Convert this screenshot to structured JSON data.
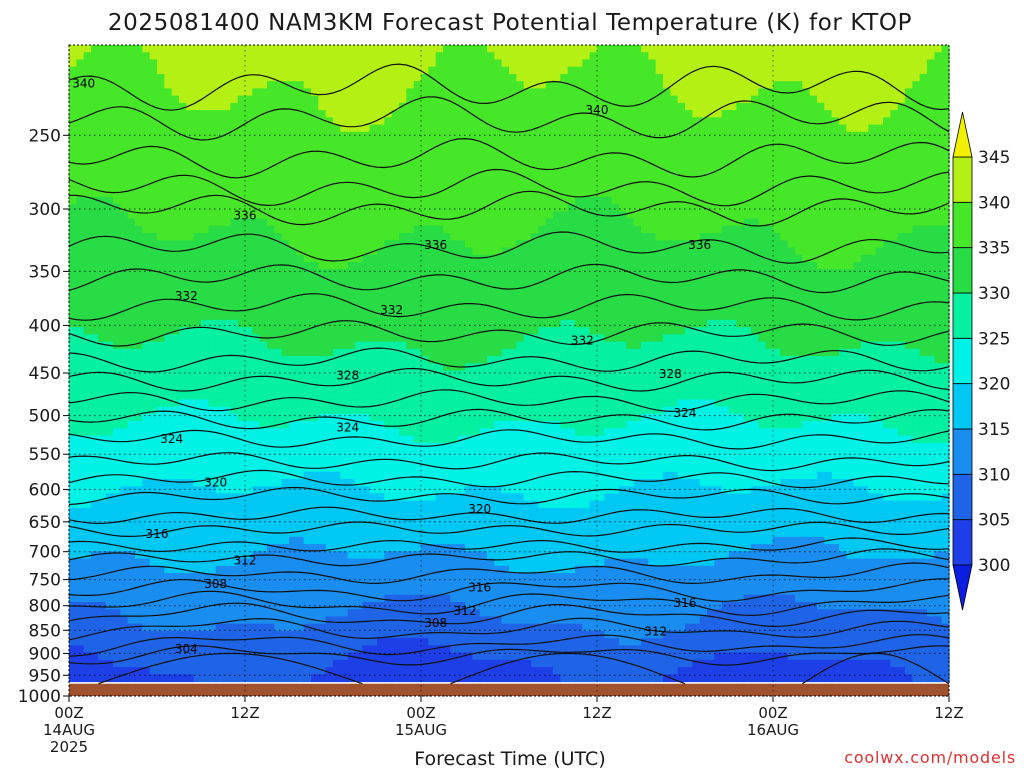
{
  "chart_data": {
    "type": "heatmap",
    "title": "2025081400 NAM3KM Forecast Potential Temperature (K) for KTOP",
    "xlabel": "Forecast Time (UTC)",
    "ylabel": "",
    "watermark": "coolwx.com/models",
    "x_ticks": [
      {
        "time": "2025-08-14 00Z",
        "lines": [
          "00Z",
          "14AUG",
          "2025"
        ]
      },
      {
        "time": "2025-08-14 12Z",
        "lines": [
          "12Z"
        ]
      },
      {
        "time": "2025-08-15 00Z",
        "lines": [
          "00Z",
          "15AUG"
        ]
      },
      {
        "time": "2025-08-15 12Z",
        "lines": [
          "12Z"
        ]
      },
      {
        "time": "2025-08-16 00Z",
        "lines": [
          "00Z",
          "16AUG"
        ]
      },
      {
        "time": "2025-08-16 12Z",
        "lines": [
          "12Z"
        ]
      }
    ],
    "xlim": [
      "2025-08-14 00Z",
      "2025-08-16 12Z"
    ],
    "y_ticks": [
      250,
      300,
      350,
      400,
      450,
      500,
      550,
      600,
      650,
      700,
      750,
      800,
      850,
      900,
      950,
      1000
    ],
    "ylim": [
      200,
      1000
    ],
    "ground_pressure": 970,
    "grid": true,
    "colorbar": {
      "levels": [
        300,
        305,
        310,
        315,
        320,
        325,
        330,
        335,
        340,
        345
      ],
      "labels": [
        "300",
        "305",
        "310",
        "315",
        "320",
        "325",
        "330",
        "335",
        "340",
        "345"
      ],
      "colors": [
        "#0a1de0",
        "#1e3fe8",
        "#1f64e6",
        "#1a8ef0",
        "#00c8f5",
        "#00f2e6",
        "#05f0a0",
        "#28dc46",
        "#46e628",
        "#b4f014",
        "#f0f000"
      ],
      "extend": "both"
    },
    "contour_labels": [
      {
        "value": "340",
        "hour": 1,
        "pressure": 220
      },
      {
        "value": "340",
        "hour": 36,
        "pressure": 235
      },
      {
        "value": "336",
        "hour": 12,
        "pressure": 305
      },
      {
        "value": "336",
        "hour": 25,
        "pressure": 328
      },
      {
        "value": "336",
        "hour": 43,
        "pressure": 328
      },
      {
        "value": "332",
        "hour": 8,
        "pressure": 372
      },
      {
        "value": "332",
        "hour": 22,
        "pressure": 385
      },
      {
        "value": "332",
        "hour": 35,
        "pressure": 415
      },
      {
        "value": "328",
        "hour": 19,
        "pressure": 453
      },
      {
        "value": "328",
        "hour": 41,
        "pressure": 451
      },
      {
        "value": "324",
        "hour": 7,
        "pressure": 530
      },
      {
        "value": "324",
        "hour": 19,
        "pressure": 515
      },
      {
        "value": "324",
        "hour": 42,
        "pressure": 497
      },
      {
        "value": "320",
        "hour": 10,
        "pressure": 590
      },
      {
        "value": "320",
        "hour": 28,
        "pressure": 630
      },
      {
        "value": "316",
        "hour": 6,
        "pressure": 670
      },
      {
        "value": "316",
        "hour": 28,
        "pressure": 765
      },
      {
        "value": "316",
        "hour": 42,
        "pressure": 795
      },
      {
        "value": "312",
        "hour": 12,
        "pressure": 715
      },
      {
        "value": "312",
        "hour": 27,
        "pressure": 810
      },
      {
        "value": "312",
        "hour": 40,
        "pressure": 853
      },
      {
        "value": "308",
        "hour": 10,
        "pressure": 758
      },
      {
        "value": "308",
        "hour": 25,
        "pressure": 835
      },
      {
        "value": "304",
        "hour": 8,
        "pressure": 890
      }
    ]
  }
}
